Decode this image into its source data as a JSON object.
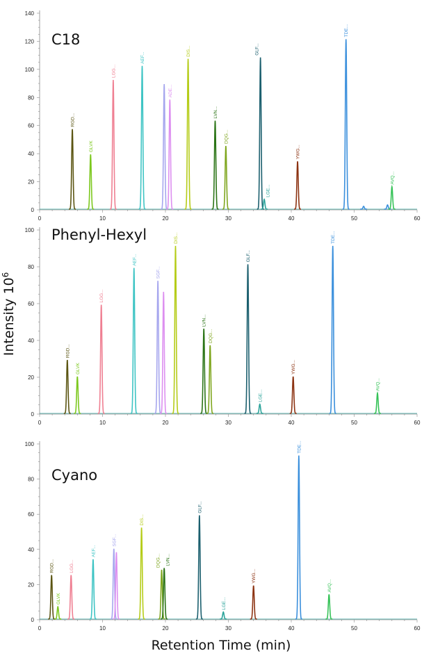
{
  "chart_data": {
    "type": "line",
    "ylabel": "Intensity 10",
    "ylabel_superscript": "6",
    "xlabel": "Retention Time (min)",
    "xlim": [
      0,
      60
    ],
    "x_ticks": [
      "0",
      "10",
      "20",
      "30",
      "40",
      "50",
      "60"
    ],
    "grid": false,
    "colors": {
      "RGD": "#5b5512",
      "GLVK": "#7cc81e",
      "LGG": "#ef7f92",
      "AEF": "#3ec4c4",
      "SGF": "#a6a6ee",
      "ADE": "#dd8ff0",
      "DIS": "#b5cc18",
      "LVN": "#2b7416",
      "DQG": "#7fa61e",
      "GLF": "#1b5f6e",
      "LGE": "#2ba39a",
      "YWG": "#8c3312",
      "TDE": "#3a8fdc",
      "AVQ": "#35c257",
      "baseline": "#3aa8a0"
    },
    "panels": [
      {
        "title": "C18",
        "ylim": [
          0,
          140
        ],
        "y_ticks": [
          "0",
          "20",
          "40",
          "60",
          "80",
          "100",
          "120",
          "140"
        ],
        "peaks": [
          {
            "label": "RGD...",
            "key": "RGD",
            "rt": 5.2,
            "intensity": 57
          },
          {
            "label": "GLVK",
            "key": "GLVK",
            "rt": 8.1,
            "intensity": 39
          },
          {
            "label": "LGG...",
            "key": "LGG",
            "rt": 11.7,
            "intensity": 92
          },
          {
            "label": "AEF...",
            "key": "AEF",
            "rt": 16.3,
            "intensity": 102
          },
          {
            "label": "",
            "key": "SGF",
            "rt": 19.8,
            "intensity": 89
          },
          {
            "label": "ADE...",
            "key": "ADE",
            "rt": 20.7,
            "intensity": 78
          },
          {
            "label": "DIS...",
            "key": "DIS",
            "rt": 23.6,
            "intensity": 107
          },
          {
            "label": "LVN...",
            "key": "LVN",
            "rt": 27.9,
            "intensity": 63
          },
          {
            "label": "DQG...",
            "key": "DQG",
            "rt": 29.6,
            "intensity": 45
          },
          {
            "label": "GLF...",
            "key": "GLF",
            "rt": 35.1,
            "intensity": 108
          },
          {
            "label": "LGE...",
            "key": "LGE",
            "rt": 35.7,
            "intensity": 7
          },
          {
            "label": "YWG...",
            "key": "YWG",
            "rt": 41.0,
            "intensity": 34
          },
          {
            "label": "TDE...",
            "key": "TDE",
            "rt": 48.7,
            "intensity": 121
          },
          {
            "label": "",
            "key": "TDE",
            "rt": 51.5,
            "intensity": 2
          },
          {
            "label": "",
            "key": "TDE",
            "rt": 55.3,
            "intensity": 3
          },
          {
            "label": "AVQ...",
            "key": "AVQ",
            "rt": 56.0,
            "intensity": 16
          }
        ]
      },
      {
        "title": "Phenyl-Hexyl",
        "ylim": [
          0,
          100
        ],
        "y_ticks": [
          "0",
          "20",
          "40",
          "60",
          "80",
          "100"
        ],
        "peaks": [
          {
            "label": "RGD...",
            "key": "RGD",
            "rt": 4.4,
            "intensity": 29
          },
          {
            "label": "GLVK",
            "key": "GLVK",
            "rt": 6.0,
            "intensity": 20
          },
          {
            "label": "LGG...",
            "key": "LGG",
            "rt": 9.8,
            "intensity": 59
          },
          {
            "label": "AEF...",
            "key": "AEF",
            "rt": 15.0,
            "intensity": 79
          },
          {
            "label": "SGF...",
            "key": "SGF",
            "rt": 18.8,
            "intensity": 72
          },
          {
            "label": "",
            "key": "ADE",
            "rt": 19.7,
            "intensity": 66
          },
          {
            "label": "DIS...",
            "key": "DIS",
            "rt": 21.6,
            "intensity": 91
          },
          {
            "label": "LVN...",
            "key": "LVN",
            "rt": 26.1,
            "intensity": 46
          },
          {
            "label": "DQG...",
            "key": "DQG",
            "rt": 27.1,
            "intensity": 37
          },
          {
            "label": "GLF...",
            "key": "GLF",
            "rt": 33.1,
            "intensity": 81
          },
          {
            "label": "LGE...",
            "key": "LGE",
            "rt": 35.0,
            "intensity": 5
          },
          {
            "label": "YWG...",
            "key": "YWG",
            "rt": 40.3,
            "intensity": 20
          },
          {
            "label": "TDE...",
            "key": "TDE",
            "rt": 46.6,
            "intensity": 91
          },
          {
            "label": "AVQ...",
            "key": "AVQ",
            "rt": 53.7,
            "intensity": 11
          }
        ]
      },
      {
        "title": "Cyano",
        "ylim": [
          0,
          100
        ],
        "y_ticks": [
          "0",
          "20",
          "40",
          "60",
          "80",
          "100"
        ],
        "peaks": [
          {
            "label": "RGD...",
            "key": "RGD",
            "rt": 1.9,
            "intensity": 25
          },
          {
            "label": "GLVK",
            "key": "GLVK",
            "rt": 2.9,
            "intensity": 7
          },
          {
            "label": "LGG...",
            "key": "LGG",
            "rt": 5.0,
            "intensity": 25
          },
          {
            "label": "AEF...",
            "key": "AEF",
            "rt": 8.5,
            "intensity": 34
          },
          {
            "label": "SGF...",
            "key": "SGF",
            "rt": 11.8,
            "intensity": 40
          },
          {
            "label": "",
            "key": "ADE",
            "rt": 12.2,
            "intensity": 38
          },
          {
            "label": "DIS...",
            "key": "DIS",
            "rt": 16.2,
            "intensity": 52
          },
          {
            "label": "DQG...",
            "key": "DQG",
            "rt": 19.4,
            "intensity": 28
          },
          {
            "label": "LVN...",
            "key": "LVN",
            "rt": 19.8,
            "intensity": 29
          },
          {
            "label": "GLF...",
            "key": "GLF",
            "rt": 25.4,
            "intensity": 59
          },
          {
            "label": "LGE...",
            "key": "LGE",
            "rt": 29.2,
            "intensity": 4
          },
          {
            "label": "YWG...",
            "key": "YWG",
            "rt": 34.0,
            "intensity": 19
          },
          {
            "label": "TDE...",
            "key": "TDE",
            "rt": 41.2,
            "intensity": 93
          },
          {
            "label": "AVQ...",
            "key": "AVQ",
            "rt": 46.0,
            "intensity": 14
          }
        ]
      }
    ]
  }
}
